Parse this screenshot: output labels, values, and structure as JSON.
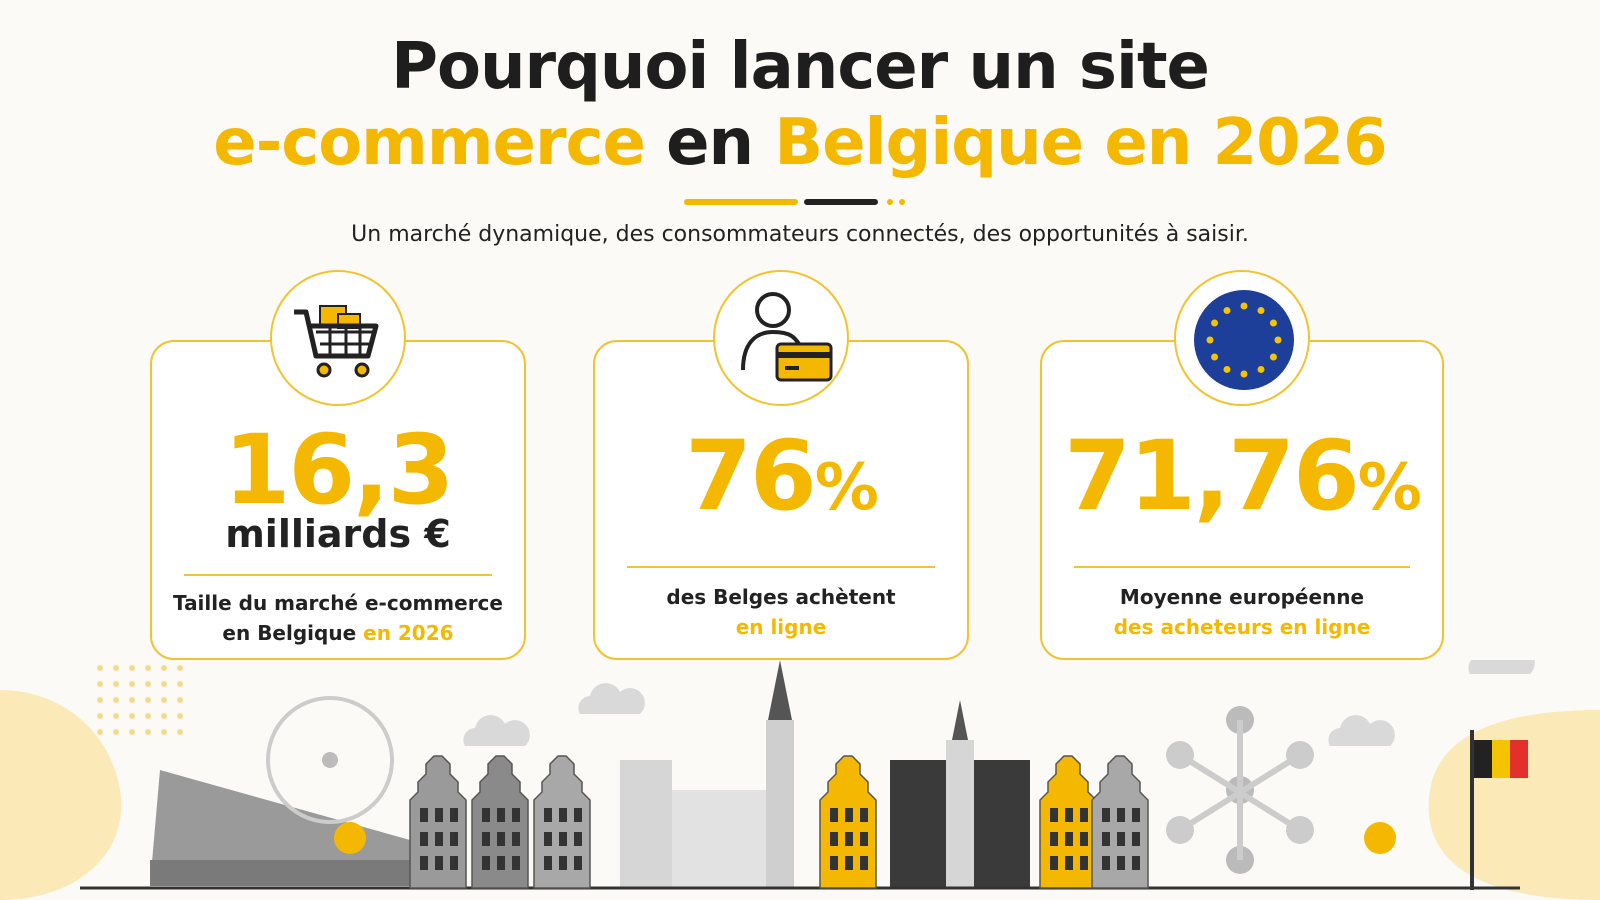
{
  "header": {
    "title_line1": "Pourquoi lancer un site",
    "title_line2": {
      "part1": "e-commerce",
      "part2": "en",
      "part3": "Belgique en 2026"
    },
    "subtitle": "Un marché dynamique, des consommateurs connectés, des opportunités à saisir."
  },
  "cards": [
    {
      "value": "16,3",
      "unit": "milliards €",
      "description": "Taille du marché e-commerce",
      "description_line2": "en Belgique",
      "highlight": "en 2026"
    },
    {
      "value": "76",
      "unit": "%",
      "description": "des Belges achètent",
      "highlight": "en ligne"
    },
    {
      "value": "71,76",
      "unit": "%",
      "description": "Moyenne européenne",
      "highlight": "des acheteurs en ligne"
    }
  ]
}
